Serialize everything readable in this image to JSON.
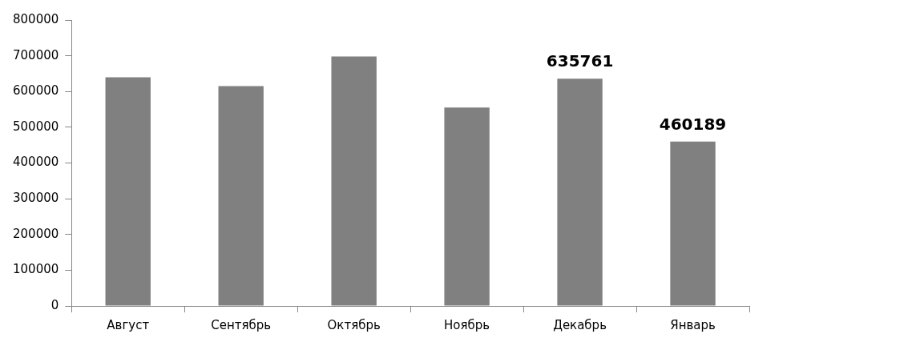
{
  "chart_data": {
    "type": "bar",
    "categories": [
      "Август",
      "Сентябрь",
      "Октябрь",
      "Ноябрь",
      "Декабрь",
      "Январь"
    ],
    "values": [
      640000,
      615000,
      698000,
      555000,
      635761,
      460189
    ],
    "value_labels": [
      null,
      null,
      null,
      null,
      "635761",
      "460189"
    ],
    "color": "#808080",
    "ylim": [
      0,
      800000
    ],
    "yticks": [
      0,
      100000,
      200000,
      300000,
      400000,
      500000,
      600000,
      700000,
      800000
    ],
    "grid": false,
    "legend": false
  }
}
